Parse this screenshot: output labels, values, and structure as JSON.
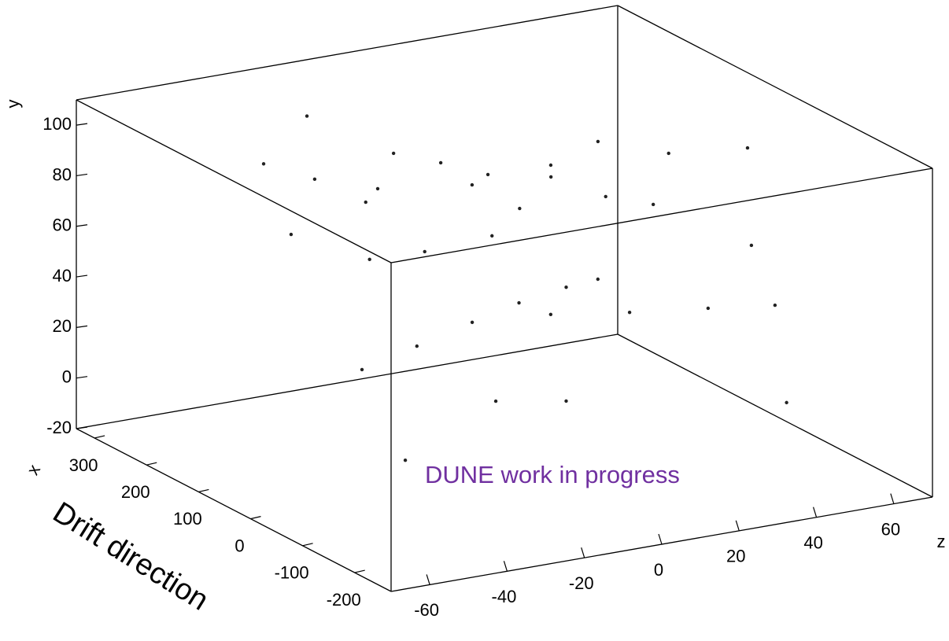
{
  "chart_data": {
    "type": "scatter3d",
    "x_label": "x",
    "y_label": "y",
    "z_label": "z",
    "annotations": [
      "Drift direction",
      "DUNE work in progress"
    ],
    "annotation_color": "#7030a0",
    "color": "#222222",
    "xlim": [
      335,
      -270
    ],
    "ylim": [
      -20,
      110
    ],
    "zlim": [
      -70,
      70
    ],
    "xticks": [
      300,
      200,
      100,
      0,
      -100,
      -200
    ],
    "yticks": [
      -20,
      0,
      20,
      40,
      60,
      80,
      100
    ],
    "zticks": [
      -60,
      -40,
      -20,
      0,
      20,
      40,
      60
    ],
    "x": [
      0,
      0,
      0,
      0,
      0,
      0,
      0,
      0,
      0,
      0,
      250,
      250,
      250,
      250,
      250,
      250,
      250,
      250,
      250,
      250,
      250,
      150,
      150,
      150,
      150,
      0,
      0,
      250,
      250,
      150,
      150,
      0,
      0,
      0,
      0,
      0
    ],
    "y": [
      31.3,
      36.8,
      42.4,
      46.9,
      49.8,
      50.8,
      40.1,
      35.5,
      31.7,
      28.3,
      99.8,
      79.1,
      61.2,
      48.6,
      66.2,
      72.1,
      83.9,
      74.3,
      61.7,
      64.2,
      58.9,
      83.9,
      77.8,
      55.2,
      61.6,
      95.7,
      92.4,
      54.1,
      38.8,
      52.3,
      53.9,
      53.6,
      9.6,
      4.8,
      -11.0,
      -7.5
    ],
    "z": [
      -41.2,
      -27.0,
      -12.7,
      -0.6,
      11.6,
      19.8,
      7.6,
      28.0,
      48.3,
      65.6,
      -21.8,
      0.6,
      20.9,
      33.2,
      -3.5,
      12.8,
      -33.0,
      -19.8,
      -6.6,
      25.0,
      41.3,
      40.0,
      27.8,
      54.3,
      42.0,
      38.1,
      58.5,
      -25.9,
      -5.6,
      -4.8,
      12.6,
      59.5,
      -6.6,
      11.6,
      68.6,
      -30.0
    ]
  }
}
